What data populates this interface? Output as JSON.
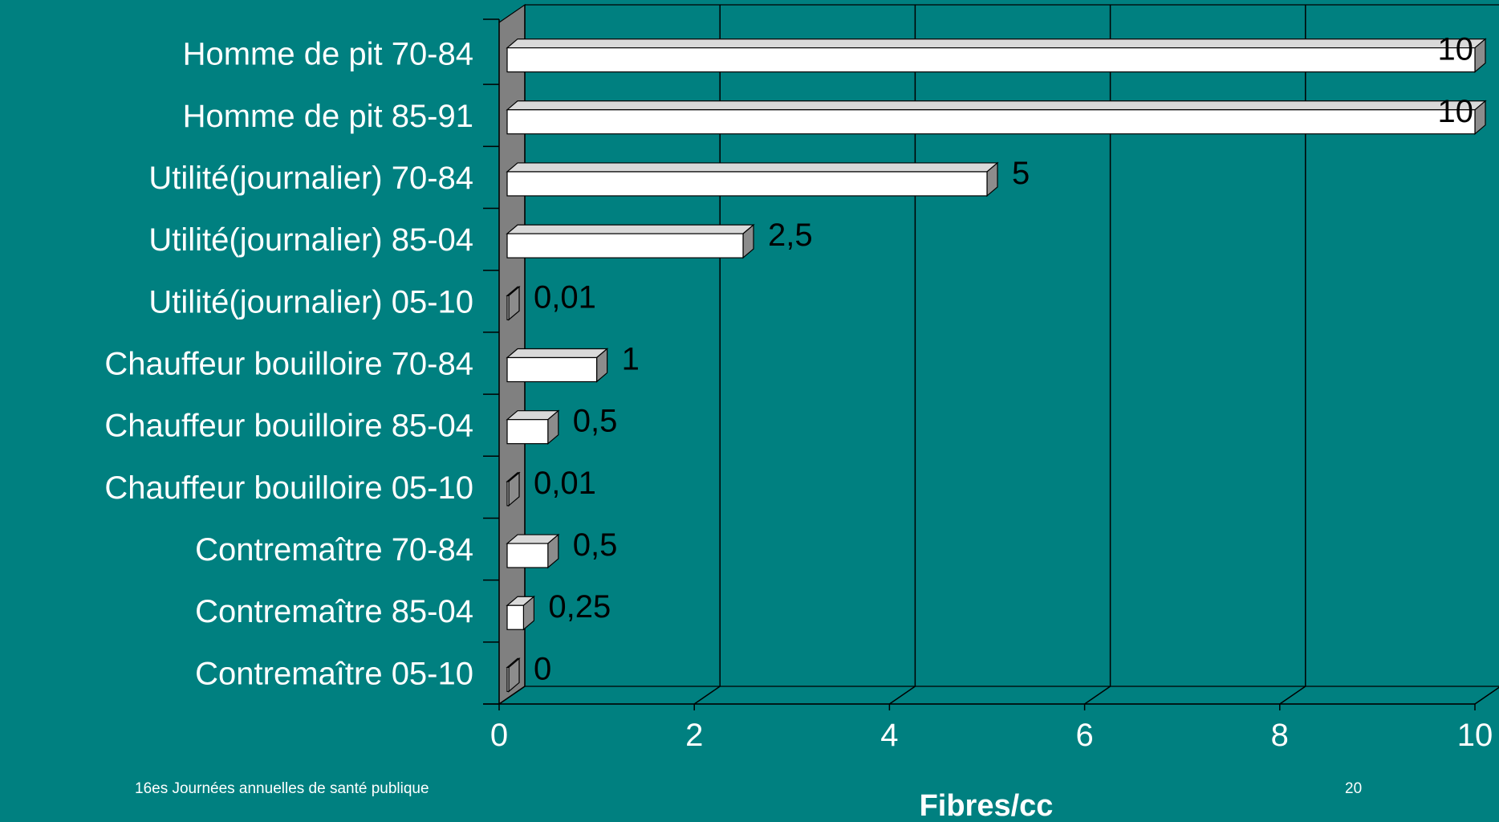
{
  "footer": {
    "left": "16es Journées annuelles de santé publique",
    "right": "20"
  },
  "colors": {
    "background": "#008080",
    "bar_front": "#ffffff",
    "bar_side": "#8c8c8c",
    "bar_top": "#d9d9d9",
    "wall": "#808080",
    "text": "#ffffff"
  },
  "chart_data": {
    "type": "bar",
    "orientation": "horizontal",
    "style": "3d",
    "categories": [
      "Homme de pit 70-84",
      "Homme de pit 85-91",
      "Utilité(journalier) 70-84",
      "Utilité(journalier) 85-04",
      "Utilité(journalier) 05-10",
      "Chauffeur bouilloire 70-84",
      "Chauffeur bouilloire 85-04",
      "Chauffeur bouilloire 05-10",
      "Contremaître 70-84",
      "Contremaître 85-04",
      "Contremaître 05-10"
    ],
    "values": [
      10,
      10,
      5,
      2.5,
      0.01,
      1,
      0.5,
      0.01,
      0.5,
      0.25,
      0
    ],
    "value_labels": [
      "10",
      "10",
      "5",
      "2,5",
      "0,01",
      "1",
      "0,5",
      "0,01",
      "0,5",
      "0,25",
      "0"
    ],
    "xticks": [
      "0",
      "2",
      "4",
      "6",
      "8",
      "10"
    ],
    "xlim": [
      0,
      10
    ],
    "xlabel": "Fibres/cc",
    "grid": true
  }
}
